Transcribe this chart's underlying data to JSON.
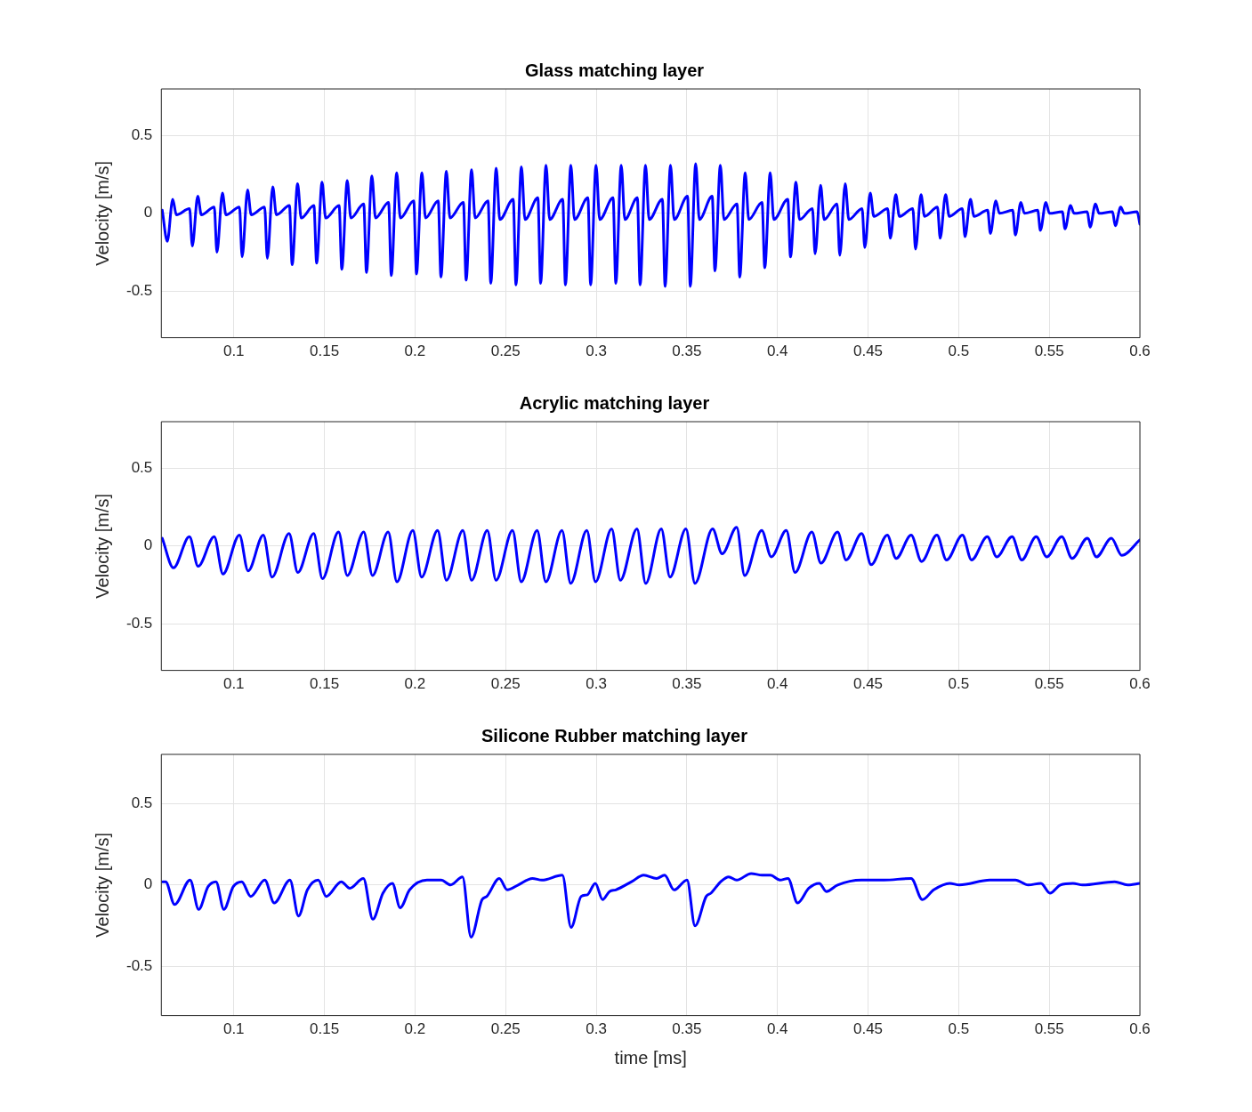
{
  "chart_data": [
    {
      "type": "line",
      "title": "Glass matching layer",
      "ylabel": "Velocity [m/s]",
      "xlim": [
        0.06,
        0.6
      ],
      "xticks": [
        0.1,
        0.15,
        0.2,
        0.25,
        0.3,
        0.35,
        0.4,
        0.45,
        0.5,
        0.55,
        0.6
      ],
      "ylim": [
        -0.8,
        0.8
      ],
      "yticks": [
        -0.5,
        0,
        0.5
      ],
      "grid": true,
      "legend": false,
      "x": [
        0.0605,
        0.0633,
        0.0663,
        0.0683,
        0.0756,
        0.0771,
        0.0801,
        0.0821,
        0.0892,
        0.0907,
        0.0937,
        0.0957,
        0.1031,
        0.1046,
        0.1076,
        0.1096,
        0.117,
        0.1185,
        0.1215,
        0.1235,
        0.1307,
        0.1322,
        0.1352,
        0.1372,
        0.1442,
        0.1457,
        0.1487,
        0.1507,
        0.1581,
        0.1596,
        0.1626,
        0.1646,
        0.1717,
        0.1732,
        0.1762,
        0.1782,
        0.1854,
        0.1869,
        0.1899,
        0.1919,
        0.1993,
        0.2008,
        0.2038,
        0.2058,
        0.2128,
        0.2143,
        0.2173,
        0.2193,
        0.2267,
        0.2282,
        0.2312,
        0.2332,
        0.2403,
        0.2418,
        0.2448,
        0.2468,
        0.2542,
        0.2557,
        0.2587,
        0.2607,
        0.2678,
        0.2693,
        0.2723,
        0.2743,
        0.2815,
        0.283,
        0.286,
        0.288,
        0.2954,
        0.2969,
        0.2999,
        0.3019,
        0.3093,
        0.3108,
        0.3138,
        0.3158,
        0.3227,
        0.3242,
        0.3272,
        0.3292,
        0.3365,
        0.338,
        0.341,
        0.343,
        0.3504,
        0.3519,
        0.3549,
        0.3569,
        0.364,
        0.3655,
        0.3685,
        0.3705,
        0.3777,
        0.3792,
        0.3822,
        0.3842,
        0.3915,
        0.393,
        0.396,
        0.398,
        0.4057,
        0.4072,
        0.4102,
        0.4122,
        0.4193,
        0.4208,
        0.4238,
        0.4258,
        0.4329,
        0.4344,
        0.4374,
        0.4394,
        0.4467,
        0.4482,
        0.4512,
        0.4532,
        0.4608,
        0.4623,
        0.4653,
        0.4673,
        0.4747,
        0.4762,
        0.4792,
        0.4812,
        0.4883,
        0.4898,
        0.4928,
        0.4948,
        0.502,
        0.5035,
        0.5065,
        0.5085,
        0.516,
        0.5175,
        0.5205,
        0.5225,
        0.5298,
        0.5313,
        0.5343,
        0.5363,
        0.5436,
        0.5451,
        0.5481,
        0.5501,
        0.5572,
        0.5587,
        0.5617,
        0.5637,
        0.571,
        0.5725,
        0.5755,
        0.5775,
        0.5849,
        0.5864,
        0.5894,
        0.5914,
        0.5985,
        0.6
      ],
      "series": [
        {
          "color": "#0000ff",
          "values": [
            0.02,
            -0.18,
            0.09,
            -0.01,
            0.03,
            -0.21,
            0.11,
            -0.01,
            0.04,
            -0.25,
            0.13,
            -0.01,
            0.04,
            -0.28,
            0.15,
            -0.01,
            0.04,
            -0.29,
            0.17,
            -0.01,
            0.05,
            -0.33,
            0.19,
            -0.03,
            0.05,
            -0.32,
            0.2,
            -0.03,
            0.05,
            -0.36,
            0.21,
            -0.03,
            0.06,
            -0.38,
            0.24,
            -0.03,
            0.07,
            -0.4,
            0.26,
            -0.03,
            0.08,
            -0.39,
            0.26,
            -0.03,
            0.08,
            -0.41,
            0.27,
            -0.03,
            0.07,
            -0.43,
            0.28,
            -0.03,
            0.08,
            -0.45,
            0.29,
            -0.04,
            0.09,
            -0.46,
            0.3,
            -0.04,
            0.1,
            -0.45,
            0.31,
            -0.04,
            0.09,
            -0.46,
            0.31,
            -0.04,
            0.1,
            -0.46,
            0.31,
            -0.04,
            0.1,
            -0.45,
            0.31,
            -0.04,
            0.1,
            -0.46,
            0.31,
            -0.04,
            0.09,
            -0.47,
            0.31,
            -0.04,
            0.11,
            -0.47,
            0.32,
            -0.04,
            0.11,
            -0.37,
            0.31,
            -0.04,
            0.06,
            -0.41,
            0.26,
            -0.04,
            0.07,
            -0.35,
            0.26,
            -0.04,
            0.09,
            -0.28,
            0.2,
            -0.04,
            0.03,
            -0.26,
            0.18,
            -0.04,
            0.06,
            -0.27,
            0.19,
            -0.04,
            0.03,
            -0.22,
            0.13,
            -0.02,
            0.03,
            -0.16,
            0.12,
            -0.02,
            0.03,
            -0.23,
            0.12,
            -0.02,
            0.04,
            -0.16,
            0.12,
            -0.02,
            0.03,
            -0.15,
            0.09,
            -0.02,
            0.02,
            -0.13,
            0.08,
            0,
            0.02,
            -0.14,
            0.07,
            0,
            0.02,
            -0.11,
            0.07,
            0,
            0.01,
            -0.1,
            0.05,
            0,
            0.01,
            -0.09,
            0.06,
            0,
            0.01,
            -0.08,
            0.04,
            0,
            0.01,
            -0.07
          ]
        }
      ]
    },
    {
      "type": "line",
      "title": "Acrylic matching layer",
      "ylabel": "Velocity [m/s]",
      "xlim": [
        0.06,
        0.6
      ],
      "xticks": [
        0.1,
        0.15,
        0.2,
        0.25,
        0.3,
        0.35,
        0.4,
        0.45,
        0.5,
        0.55,
        0.6
      ],
      "ylim": [
        -0.8,
        0.8
      ],
      "yticks": [
        -0.5,
        0,
        0.5
      ],
      "grid": true,
      "legend": false,
      "x": [
        0.0605,
        0.0667,
        0.0755,
        0.0803,
        0.0892,
        0.094,
        0.1031,
        0.1079,
        0.1163,
        0.1211,
        0.1305,
        0.1353,
        0.1441,
        0.1489,
        0.1578,
        0.1626,
        0.1717,
        0.1765,
        0.1852,
        0.19,
        0.1988,
        0.2036,
        0.2125,
        0.2173,
        0.2264,
        0.2312,
        0.2399,
        0.2447,
        0.2538,
        0.2586,
        0.2674,
        0.2722,
        0.2811,
        0.2859,
        0.2948,
        0.2996,
        0.3085,
        0.3133,
        0.3225,
        0.3273,
        0.3359,
        0.3407,
        0.3495,
        0.3545,
        0.3642,
        0.3695,
        0.3775,
        0.3819,
        0.3913,
        0.3966,
        0.4049,
        0.4097,
        0.419,
        0.424,
        0.4332,
        0.4379,
        0.4465,
        0.4517,
        0.4606,
        0.4655,
        0.4738,
        0.4795,
        0.488,
        0.4933,
        0.5021,
        0.5071,
        0.5158,
        0.521,
        0.5295,
        0.5348,
        0.5428,
        0.5486,
        0.5569,
        0.5626,
        0.571,
        0.576,
        0.5843,
        0.59,
        0.6
      ],
      "series": [
        {
          "color": "#0000ff",
          "values": [
            0.05,
            -0.14,
            0.06,
            -0.13,
            0.06,
            -0.18,
            0.07,
            -0.16,
            0.07,
            -0.2,
            0.08,
            -0.17,
            0.08,
            -0.21,
            0.09,
            -0.19,
            0.09,
            -0.19,
            0.09,
            -0.23,
            0.1,
            -0.2,
            0.1,
            -0.22,
            0.1,
            -0.22,
            0.1,
            -0.22,
            0.1,
            -0.23,
            0.1,
            -0.23,
            0.1,
            -0.24,
            0.1,
            -0.23,
            0.11,
            -0.22,
            0.11,
            -0.24,
            0.11,
            -0.2,
            0.11,
            -0.24,
            0.11,
            -0.05,
            0.12,
            -0.19,
            0.1,
            -0.07,
            0.1,
            -0.17,
            0.09,
            -0.11,
            0.09,
            -0.09,
            0.08,
            -0.12,
            0.07,
            -0.08,
            0.07,
            -0.1,
            0.07,
            -0.09,
            0.07,
            -0.09,
            0.06,
            -0.07,
            0.06,
            -0.09,
            0.06,
            -0.07,
            0.06,
            -0.08,
            0.05,
            -0.07,
            0.05,
            -0.06,
            0.04
          ]
        }
      ]
    },
    {
      "type": "line",
      "title": "Silicone Rubber matching layer",
      "xlabel": "time [ms]",
      "ylabel": "Velocity [m/s]",
      "xlim": [
        0.06,
        0.6
      ],
      "xticks": [
        0.1,
        0.15,
        0.2,
        0.25,
        0.3,
        0.35,
        0.4,
        0.45,
        0.5,
        0.55,
        0.6
      ],
      "ylim": [
        -0.8,
        0.8
      ],
      "yticks": [
        -0.5,
        0,
        0.5
      ],
      "grid": true,
      "legend": false,
      "x": [
        0.0607,
        0.0624,
        0.0673,
        0.0759,
        0.0806,
        0.0858,
        0.0902,
        0.0945,
        0.0997,
        0.1044,
        0.1093,
        0.1171,
        0.1223,
        0.131,
        0.1357,
        0.1406,
        0.1466,
        0.151,
        0.1593,
        0.164,
        0.1715,
        0.1767,
        0.1823,
        0.1875,
        0.1918,
        0.197,
        0.2066,
        0.2144,
        0.2196,
        0.2262,
        0.2309,
        0.237,
        0.2396,
        0.2465,
        0.2509,
        0.2569,
        0.2648,
        0.27,
        0.2813,
        0.2861,
        0.2917,
        0.2951,
        0.2995,
        0.3035,
        0.3073,
        0.3108,
        0.3195,
        0.3262,
        0.3333,
        0.3377,
        0.343,
        0.3501,
        0.3545,
        0.3607,
        0.3633,
        0.3687,
        0.3731,
        0.3775,
        0.3855,
        0.3916,
        0.3961,
        0.4014,
        0.4058,
        0.4111,
        0.4173,
        0.4231,
        0.427,
        0.4332,
        0.4464,
        0.4588,
        0.4738,
        0.48,
        0.4862,
        0.4951,
        0.5004,
        0.5172,
        0.5313,
        0.5384,
        0.5454,
        0.5504,
        0.5561,
        0.5631,
        0.5684,
        0.5861,
        0.5932,
        0.6
      ],
      "series": [
        {
          "color": "#0000ff",
          "values": [
            0.02,
            0.02,
            -0.12,
            0.03,
            -0.15,
            -0.01,
            0.02,
            -0.15,
            -0.01,
            0.02,
            -0.07,
            0.03,
            -0.11,
            0.03,
            -0.19,
            -0.03,
            0.03,
            -0.07,
            0.02,
            -0.02,
            0.04,
            -0.21,
            -0.05,
            0.01,
            -0.14,
            -0.03,
            0.03,
            0.03,
            0.0,
            0.05,
            -0.32,
            -0.09,
            -0.07,
            0.04,
            -0.03,
            0.0,
            0.04,
            0.03,
            0.06,
            -0.26,
            -0.07,
            -0.06,
            0.01,
            -0.09,
            -0.04,
            -0.03,
            0.02,
            0.06,
            0.04,
            0.06,
            -0.03,
            0.03,
            -0.25,
            -0.07,
            -0.05,
            0.02,
            0.05,
            0.03,
            0.07,
            0.06,
            0.06,
            0.03,
            0.04,
            -0.11,
            -0.02,
            0.01,
            -0.04,
            0.0,
            0.03,
            0.03,
            0.04,
            -0.09,
            -0.03,
            0.01,
            0.0,
            0.03,
            0.03,
            0.0,
            0.01,
            -0.05,
            0.0,
            0.01,
            0.0,
            0.02,
            0.0,
            0.01
          ]
        }
      ]
    }
  ]
}
